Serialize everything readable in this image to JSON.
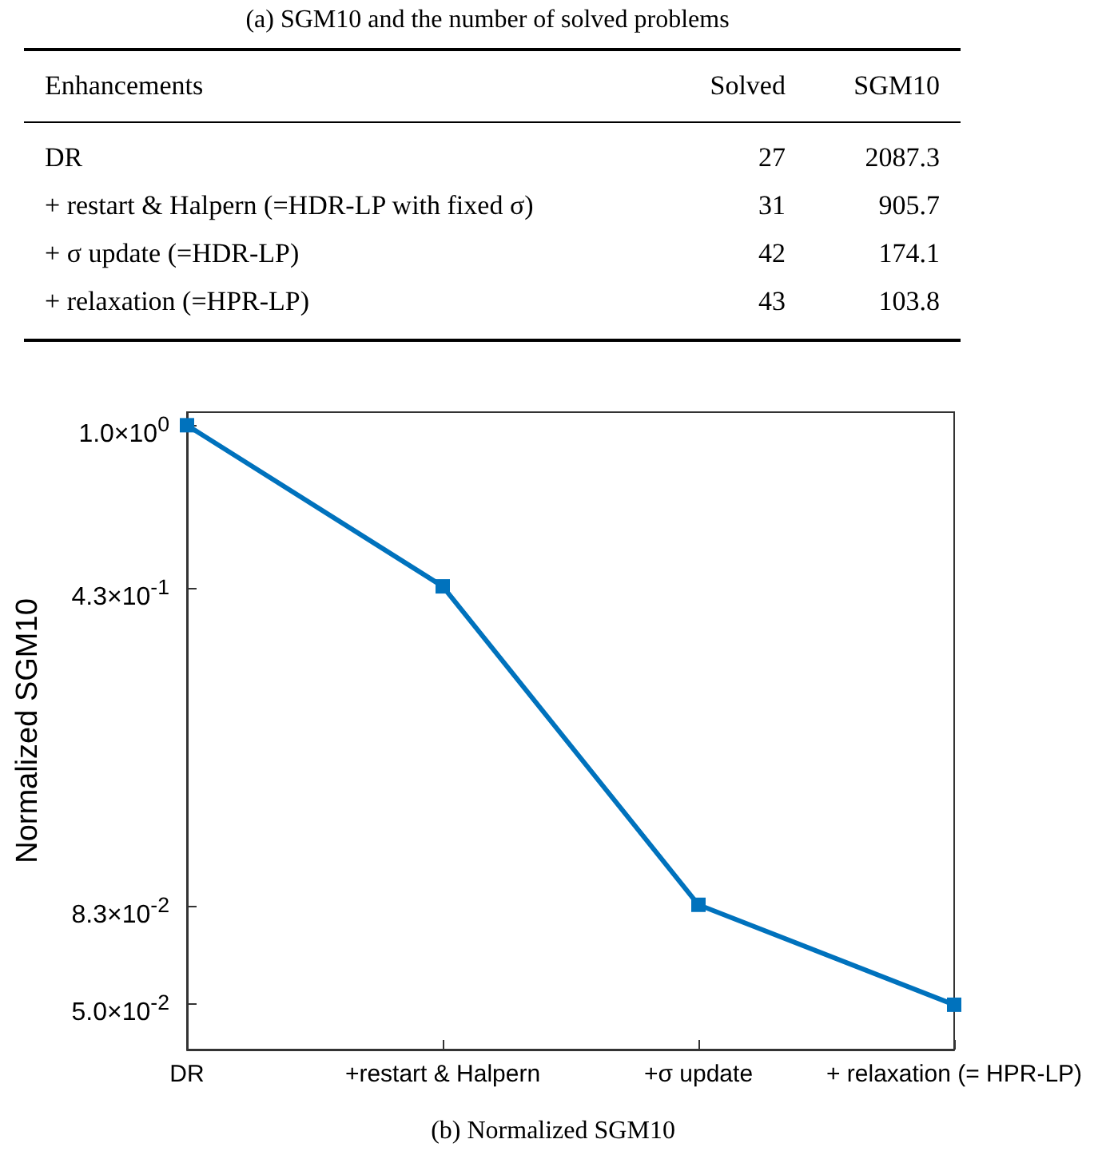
{
  "chart_data": [
    {
      "type": "other",
      "title": "(a) SGM10 and the number of solved problems",
      "xlabel": "Enhancements",
      "categories": [
        "DR",
        "+ restart & Halpern (=HDR-LP with fixed σ)",
        "+ σ update (=HDR-LP)",
        "+ relaxation (=HPR-LP)"
      ],
      "series": [
        {
          "name": "Solved",
          "values": [
            27,
            31,
            42,
            43
          ]
        },
        {
          "name": "SGM10",
          "values": [
            2087.3,
            905.7,
            174.1,
            103.8
          ]
        }
      ],
      "data_labels": true
    },
    {
      "type": "line",
      "title": "(b) Normalized SGM10",
      "ylabel": "Normalized SGM10",
      "categories": [
        "DR",
        "+restart & Halpern",
        "+σ update",
        "+ relaxation (= HPR-LP)"
      ],
      "series": [
        {
          "color": "#0072bd",
          "values": [
            1,
            0.434,
            0.0834,
            0.0497
          ]
        }
      ],
      "log": "y",
      "ylim": [
        0.0394,
        1.07
      ],
      "yticks": [
        {
          "value": 0.05,
          "label": "5.0×10$^{-2}$"
        },
        {
          "value": 0.083,
          "label": "8.3×10$^{-2}$"
        },
        {
          "value": 0.43,
          "label": "4.3×10$^{-1}$"
        },
        {
          "value": 1,
          "label": "1.0×10$^{0}$"
        }
      ],
      "grid": false,
      "marker": "square",
      "line_style": "solid"
    }
  ]
}
